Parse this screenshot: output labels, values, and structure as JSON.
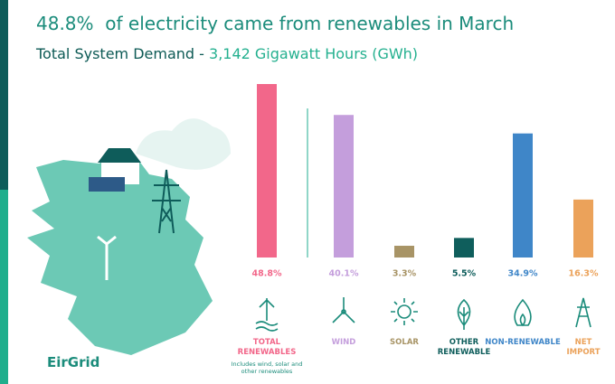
{
  "title_value": "48.8%",
  "title_text": "of electricity came from renewables in March",
  "subtitle_label": "Total System Demand -",
  "subtitle_value": "3,142 Gigawatt Hours (GWh)",
  "logo": "EirGrid",
  "chart_data": {
    "type": "bar",
    "categories": [
      "TOTAL\nRENEWABLES",
      "WIND",
      "SOLAR",
      "OTHER\nRENEWABLE",
      "NON-RENEWABLE",
      "NET\nIMPORT"
    ],
    "values": [
      48.8,
      40.1,
      3.3,
      5.5,
      34.9,
      16.3
    ],
    "value_labels": [
      "48.8%",
      "40.1%",
      "3.3%",
      "5.5%",
      "34.9%",
      "16.3%"
    ],
    "colors": [
      "#f2678a",
      "#c49edc",
      "#a89466",
      "#0f5e5c",
      "#3f86c8",
      "#eba25a"
    ],
    "total_note": "Includes wind, solar and other renewables"
  }
}
